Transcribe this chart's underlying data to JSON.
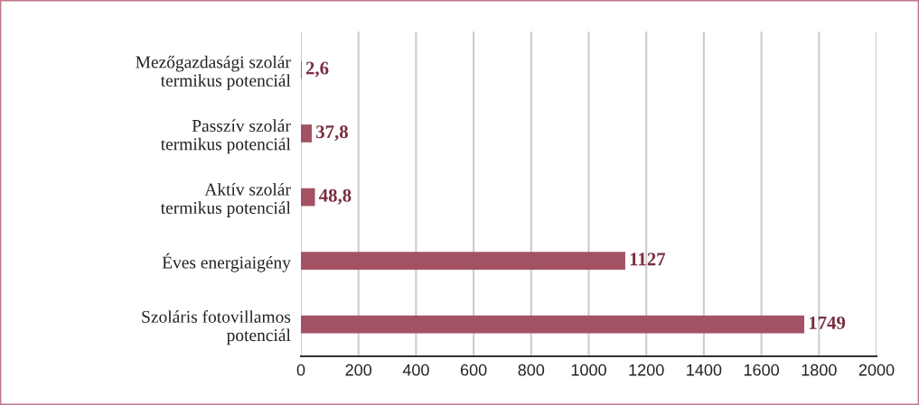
{
  "chart_data": {
    "type": "bar",
    "orientation": "horizontal",
    "categories": [
      "Mezőgazdasági szolár\ntermikus potenciál",
      "Passzív szolár\ntermikus potenciál",
      "Aktív szolár\ntermikus potenciál",
      "Éves energiaigény",
      "Szoláris fotovillamos\npotenciál"
    ],
    "values": [
      2.6,
      37.8,
      48.8,
      1127,
      1749
    ],
    "value_labels": [
      "2,6",
      "37,8",
      "48,8",
      "1127",
      "1749"
    ],
    "color": "#a35264",
    "xlim": [
      0,
      2000
    ],
    "xticks": [
      0,
      200,
      400,
      600,
      800,
      1000,
      1200,
      1400,
      1600,
      1800,
      2000
    ],
    "grid": "x",
    "legend": false
  }
}
